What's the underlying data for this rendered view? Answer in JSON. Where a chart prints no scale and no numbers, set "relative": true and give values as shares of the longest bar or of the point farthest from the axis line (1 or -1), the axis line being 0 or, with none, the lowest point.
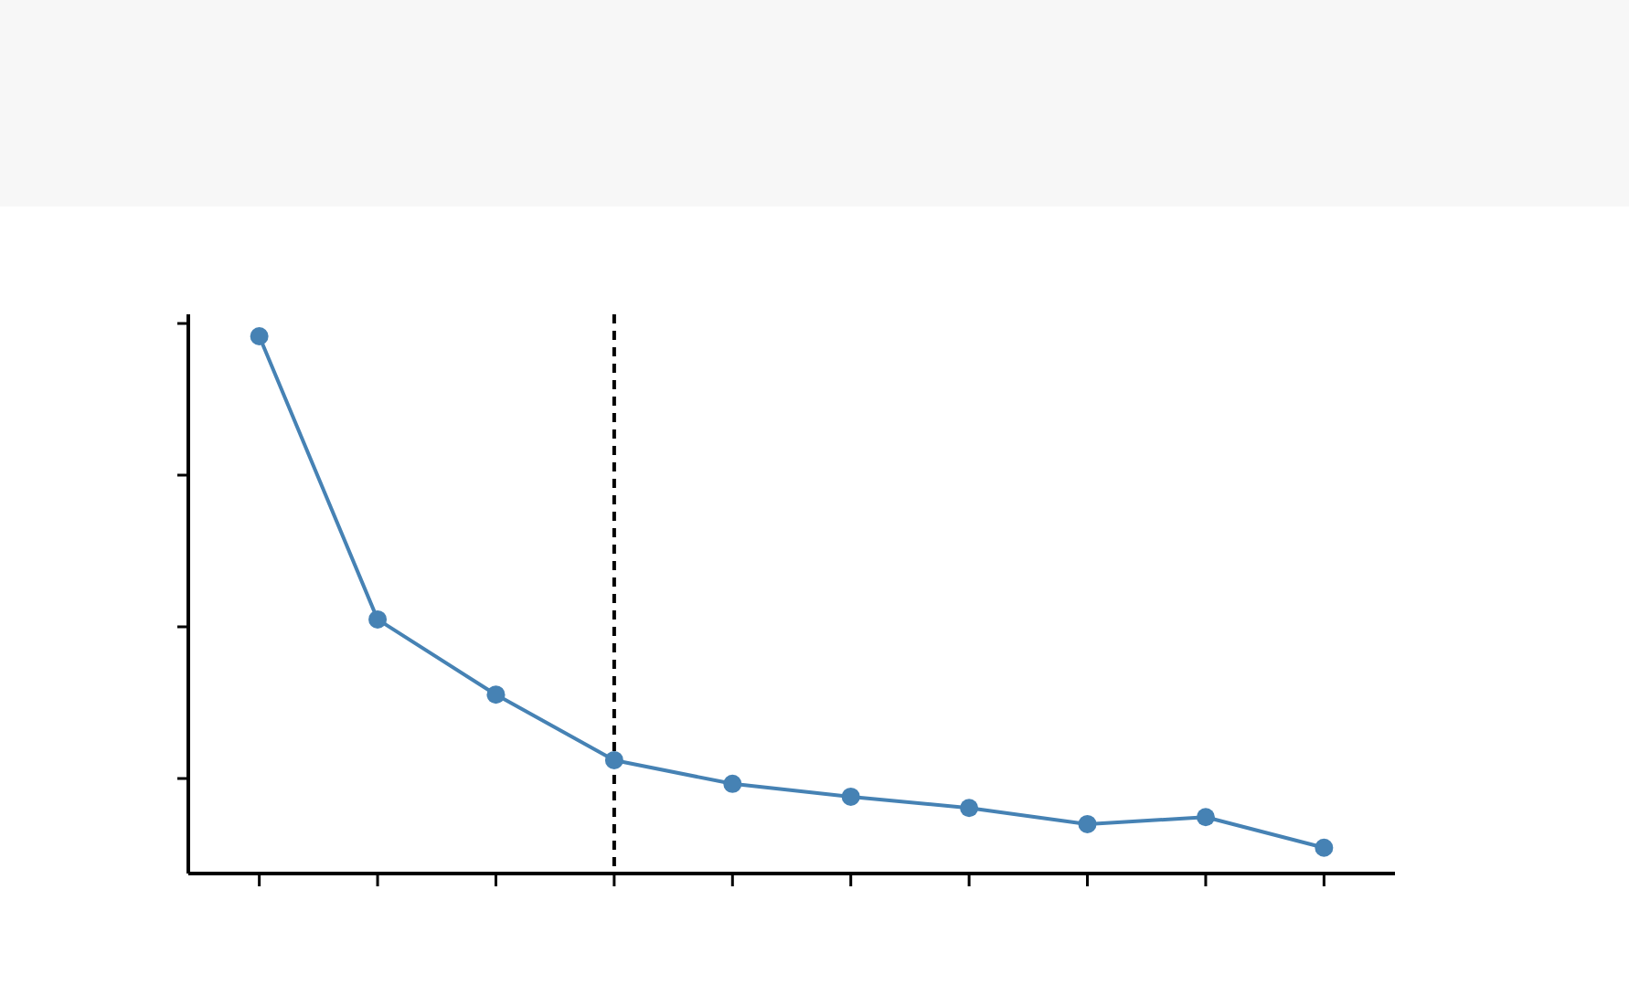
{
  "chart_data": {
    "type": "line",
    "relative": true,
    "categories": [
      null,
      null,
      null,
      null,
      null,
      null,
      null,
      null,
      null,
      null
    ],
    "series": [
      {
        "color": "#4682b4",
        "values": [
          1,
          0.473,
          0.333,
          0.211,
          0.167,
          0.143,
          0.122,
          0.092,
          0.105,
          0.048
        ]
      }
    ],
    "marker": "circle",
    "line_style": "solid"
  }
}
